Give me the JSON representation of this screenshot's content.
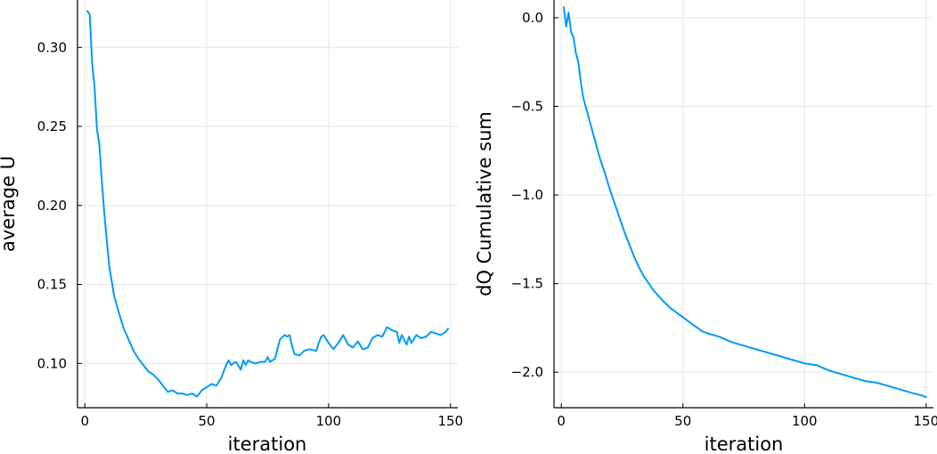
{
  "chart_data": [
    {
      "type": "line",
      "title": "",
      "xlabel": "iteration",
      "ylabel": "average U",
      "xlim": [
        -3,
        153
      ],
      "ylim": [
        0.072,
        0.33
      ],
      "xticks": [
        0,
        50,
        100,
        150
      ],
      "xtick_labels": [
        "0",
        "50",
        "100",
        "150"
      ],
      "yticks": [
        0.1,
        0.15,
        0.2,
        0.25,
        0.3
      ],
      "ytick_labels": [
        "0.10",
        "0.15",
        "0.20",
        "0.25",
        "0.30"
      ],
      "grid": true,
      "legend": "none",
      "series_color": "#009af9",
      "series": [
        {
          "x": [
            1,
            2,
            3,
            4,
            5,
            6,
            7,
            8,
            9,
            10,
            12,
            14,
            16,
            18,
            20,
            22,
            24,
            26,
            28,
            30,
            32,
            34,
            36,
            38,
            40,
            42,
            44,
            46,
            48,
            50,
            52,
            54,
            56,
            57,
            58,
            59,
            60,
            62,
            64,
            65,
            66,
            67,
            68,
            70,
            72,
            74,
            75,
            76,
            78,
            80,
            82,
            83,
            84,
            85,
            86,
            88,
            90,
            92,
            95,
            96,
            97,
            98,
            100,
            102,
            104,
            106,
            108,
            110,
            112,
            114,
            116,
            118,
            120,
            122,
            124,
            126,
            128,
            129,
            130,
            132,
            133,
            134,
            136,
            138,
            140,
            142,
            144,
            146,
            148,
            149
          ],
          "y": [
            0.323,
            0.321,
            0.29,
            0.275,
            0.248,
            0.238,
            0.215,
            0.195,
            0.178,
            0.162,
            0.143,
            0.132,
            0.122,
            0.115,
            0.108,
            0.103,
            0.099,
            0.095,
            0.093,
            0.09,
            0.086,
            0.082,
            0.083,
            0.081,
            0.081,
            0.08,
            0.081,
            0.079,
            0.083,
            0.085,
            0.087,
            0.086,
            0.091,
            0.095,
            0.099,
            0.102,
            0.099,
            0.101,
            0.096,
            0.102,
            0.099,
            0.102,
            0.101,
            0.1,
            0.101,
            0.101,
            0.104,
            0.101,
            0.103,
            0.115,
            0.118,
            0.117,
            0.118,
            0.111,
            0.106,
            0.105,
            0.108,
            0.109,
            0.108,
            0.113,
            0.117,
            0.118,
            0.113,
            0.109,
            0.113,
            0.118,
            0.112,
            0.11,
            0.114,
            0.109,
            0.11,
            0.116,
            0.118,
            0.117,
            0.123,
            0.121,
            0.12,
            0.113,
            0.118,
            0.112,
            0.117,
            0.113,
            0.118,
            0.116,
            0.117,
            0.12,
            0.119,
            0.118,
            0.12,
            0.122
          ]
        }
      ]
    },
    {
      "type": "line",
      "title": "",
      "xlabel": "iteration",
      "ylabel": "dQ Cumulative sum",
      "xlim": [
        -3,
        153
      ],
      "ylim": [
        -2.2,
        0.1
      ],
      "xticks": [
        0,
        50,
        100,
        150
      ],
      "xtick_labels": [
        "0",
        "50",
        "100",
        "150"
      ],
      "yticks": [
        0.0,
        -0.5,
        -1.0,
        -1.5,
        -2.0
      ],
      "ytick_labels": [
        "0.0",
        "−0.5",
        "−1.0",
        "−1.5",
        "−2.0"
      ],
      "grid": true,
      "legend": "none",
      "series_color": "#009af9",
      "series": [
        {
          "x": [
            1,
            2,
            3,
            4,
            5,
            6,
            7,
            8,
            9,
            10,
            12,
            14,
            16,
            18,
            20,
            22,
            24,
            26,
            28,
            30,
            32,
            34,
            36,
            38,
            40,
            42,
            45,
            48,
            50,
            52,
            55,
            58,
            60,
            65,
            70,
            75,
            80,
            85,
            90,
            95,
            100,
            105,
            110,
            115,
            120,
            125,
            130,
            135,
            140,
            145,
            148,
            150
          ],
          "y": [
            0.06,
            -0.05,
            0.03,
            -0.08,
            -0.11,
            -0.2,
            -0.25,
            -0.36,
            -0.45,
            -0.5,
            -0.6,
            -0.7,
            -0.8,
            -0.88,
            -0.97,
            -1.05,
            -1.13,
            -1.21,
            -1.28,
            -1.35,
            -1.41,
            -1.46,
            -1.5,
            -1.54,
            -1.57,
            -1.6,
            -1.64,
            -1.67,
            -1.69,
            -1.71,
            -1.74,
            -1.77,
            -1.78,
            -1.8,
            -1.83,
            -1.85,
            -1.87,
            -1.89,
            -1.91,
            -1.93,
            -1.95,
            -1.96,
            -1.99,
            -2.01,
            -2.03,
            -2.05,
            -2.06,
            -2.08,
            -2.1,
            -2.12,
            -2.13,
            -2.14
          ]
        }
      ]
    }
  ]
}
